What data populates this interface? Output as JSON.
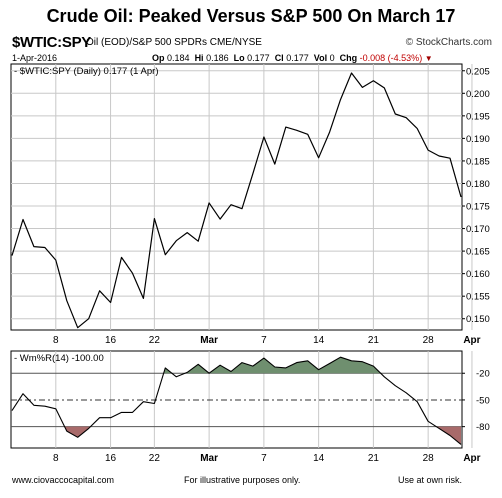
{
  "title": "Crude Oil: Peaked Versus S&P 500 On March 17",
  "header": {
    "symbol": "$WTIC:SPY",
    "description": "Oil (EOD)/S&P 500 SPDRs CME/NYSE",
    "brand": "© StockCharts.com",
    "date": "1-Apr-2016",
    "quote": {
      "op_label": "Op",
      "op": "0.184",
      "hi_label": "Hi",
      "hi": "0.186",
      "lo_label": "Lo",
      "lo": "0.177",
      "cl_label": "Cl",
      "cl": "0.177",
      "vol_label": "Vol",
      "vol": "0",
      "chg_label": "Chg",
      "chg": "-0.008 (-4.53%)",
      "chg_marker": "▼"
    }
  },
  "footer": {
    "left": "www.ciovaccocapital.com",
    "middle": "For illustrative purposes only.",
    "right": "Use at own risk."
  },
  "colors": {
    "line": "#000000",
    "grid": "#c8c8c8",
    "williams_above": "#6f8f6f",
    "williams_below": "#a86a6a"
  },
  "chart_data": [
    {
      "type": "line",
      "legend": "$WTIC:SPY (Daily) 0.177 (1 Apr)",
      "x_ticks": [
        "8",
        "16",
        "22",
        "Mar",
        "7",
        "14",
        "21",
        "28",
        "Apr"
      ],
      "x_tick_index": [
        4,
        9,
        13,
        18,
        23,
        28,
        33,
        38,
        42
      ],
      "y_ticks": [
        0.15,
        0.155,
        0.16,
        0.165,
        0.17,
        0.175,
        0.18,
        0.185,
        0.19,
        0.195,
        0.2,
        0.205
      ],
      "ylim": [
        0.1475,
        0.2065
      ],
      "grid": true,
      "values": [
        0.164,
        0.172,
        0.166,
        0.1658,
        0.163,
        0.154,
        0.148,
        0.15,
        0.1562,
        0.1536,
        0.1636,
        0.1601,
        0.1545,
        0.1722,
        0.1642,
        0.1673,
        0.1691,
        0.1672,
        0.1757,
        0.1721,
        0.1753,
        0.1744,
        0.1822,
        0.1903,
        0.1843,
        0.1925,
        0.1918,
        0.1909,
        0.1857,
        0.1914,
        0.1986,
        0.2045,
        0.2013,
        0.2028,
        0.2012,
        0.1954,
        0.1946,
        0.1922,
        0.1874,
        0.1861,
        0.1856,
        0.177
      ]
    },
    {
      "type": "line",
      "legend": "Wm%R(14) -100.00",
      "x_ticks": [
        "8",
        "16",
        "22",
        "Mar",
        "7",
        "14",
        "21",
        "28",
        "Apr"
      ],
      "y_ticks": [
        -20,
        -50,
        -80
      ],
      "ylim": [
        -104,
        5
      ],
      "reference_lines": [
        -20,
        -50,
        -80
      ],
      "values": [
        -62,
        -43,
        -56,
        -57,
        -60,
        -85,
        -92,
        -82,
        -70,
        -70,
        -64,
        -64,
        -52,
        -54,
        -14,
        -24,
        -19,
        -10,
        -20,
        -11,
        -18,
        -8,
        -12,
        -3,
        -13,
        -14,
        -8,
        -6,
        -16,
        -9,
        -2,
        -6,
        -7,
        -12,
        -24,
        -34,
        -42,
        -52,
        -74,
        -82,
        -90,
        -100
      ]
    }
  ]
}
